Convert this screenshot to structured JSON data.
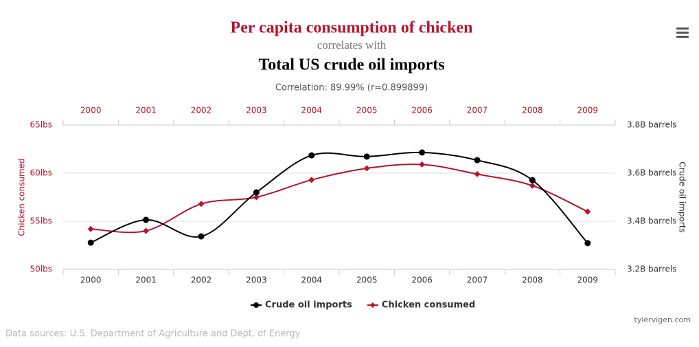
{
  "chart_data": {
    "type": "line",
    "title": "Per capita consumption of chicken",
    "connector": "correlates with",
    "title2": "Total US crude oil imports",
    "caption": "Correlation: 89.99% (r=0.899899)",
    "ylabel": "Chicken consumed",
    "y2label": "Crude oil imports",
    "credit": "tylervigen.com",
    "source": "Data sources: U.S. Department of Agriculture and Dept. of Energy",
    "categories": [
      "2000",
      "2001",
      "2002",
      "2003",
      "2004",
      "2005",
      "2006",
      "2007",
      "2008",
      "2009"
    ],
    "series": [
      {
        "name": "Crude oil imports",
        "color": "#000000",
        "axis": "y2",
        "marker": "circle",
        "values": [
          3.311,
          3.406,
          3.337,
          3.52,
          3.674,
          3.669,
          3.686,
          3.654,
          3.571,
          3.309
        ]
      },
      {
        "name": "Chicken consumed",
        "color": "#b5142b",
        "marker": "diamond",
        "values": [
          54.2,
          54.0,
          56.8,
          57.5,
          59.3,
          60.5,
          60.9,
          59.9,
          58.7,
          56.0
        ]
      }
    ],
    "ylim": [
      50,
      65
    ],
    "yticks": [
      {
        "value": 50,
        "label": "50lbs"
      },
      {
        "value": 55,
        "label": "55lbs"
      },
      {
        "value": 60,
        "label": "60lbs"
      },
      {
        "value": 65,
        "label": "65lbs"
      }
    ],
    "y2lim": [
      3.2,
      3.8
    ],
    "y2ticks": [
      {
        "value": 3.2,
        "label": "3.2B barrels"
      },
      {
        "value": 3.4,
        "label": "3.4B barrels"
      },
      {
        "value": 3.6,
        "label": "3.6B barrels"
      },
      {
        "value": 3.8,
        "label": "3.8B barrels"
      }
    ],
    "grid": true
  }
}
